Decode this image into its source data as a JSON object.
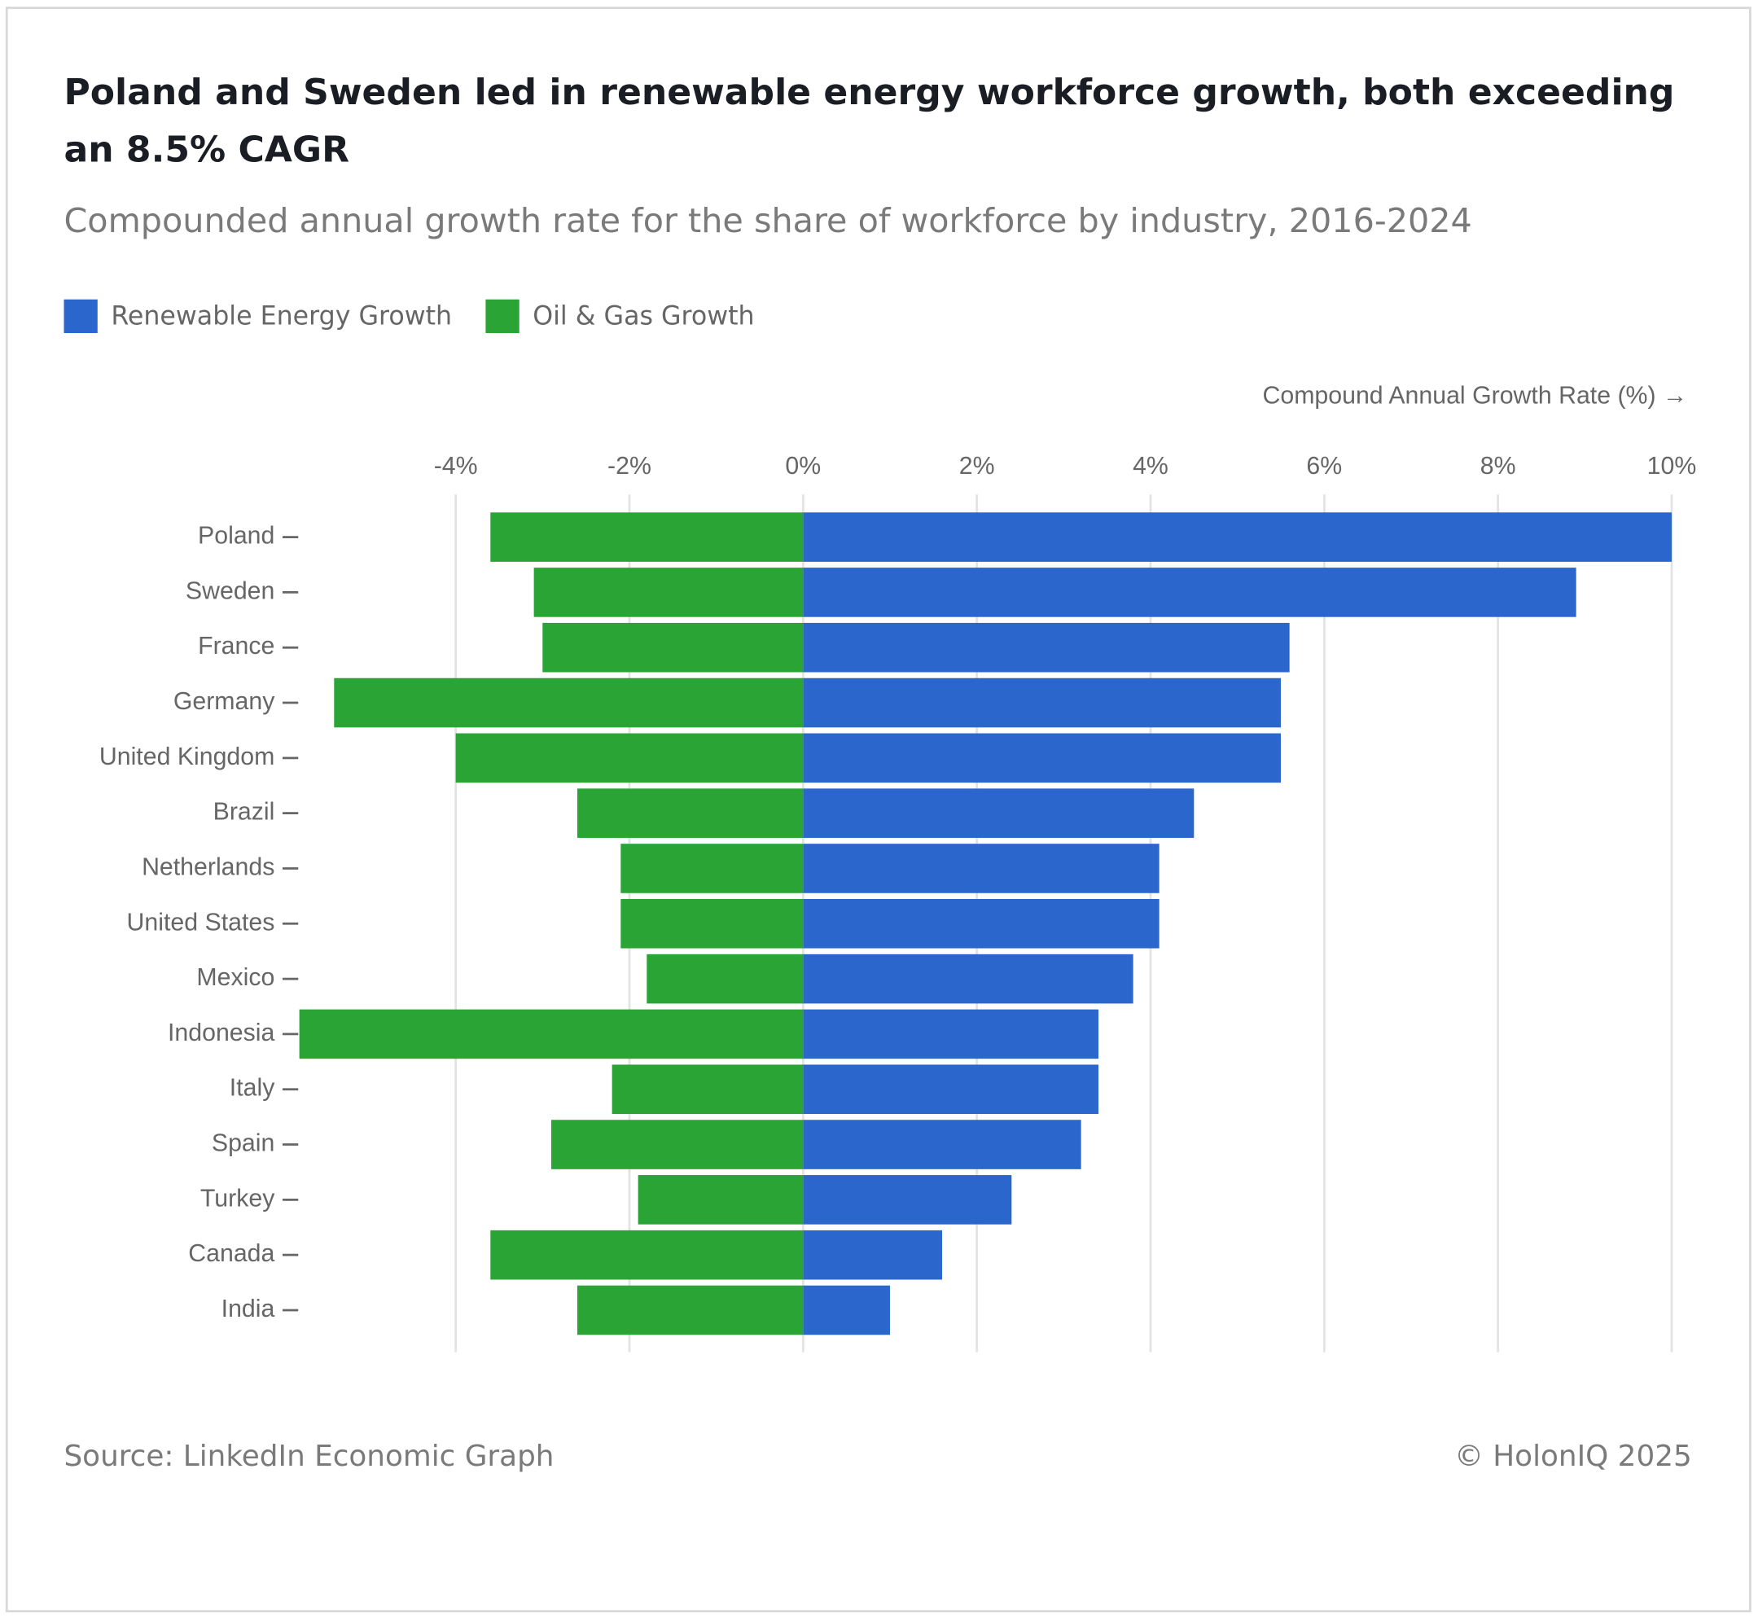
{
  "chart_data": {
    "type": "bar",
    "orientation": "horizontal",
    "title": "Poland and Sweden led in renewable energy workforce growth, both exceeding an 8.5% CAGR",
    "subtitle": "Compounded annual growth rate for the share of workforce by industry, 2016-2024",
    "x_axis_label": "Compound Annual Growth Rate (%) →",
    "source": "Source: LinkedIn Economic Graph",
    "copyright": "© HolonIQ 2025",
    "categories": [
      "Poland",
      "Sweden",
      "France",
      "Germany",
      "United Kingdom",
      "Brazil",
      "Netherlands",
      "United States",
      "Mexico",
      "Indonesia",
      "Italy",
      "Spain",
      "Turkey",
      "Canada",
      "India"
    ],
    "series": [
      {
        "name": "Renewable Energy Growth",
        "color": "#2a66cc",
        "values": [
          10.0,
          8.9,
          5.6,
          5.5,
          5.5,
          4.5,
          4.1,
          4.1,
          3.8,
          3.4,
          3.4,
          3.2,
          2.4,
          1.6,
          1.0
        ]
      },
      {
        "name": "Oil & Gas Growth",
        "color": "#2aa535",
        "values": [
          -3.6,
          -3.1,
          -3.0,
          -5.4,
          -4.0,
          -2.6,
          -2.1,
          -2.1,
          -1.8,
          -5.8,
          -2.2,
          -2.9,
          -1.9,
          -3.6,
          -2.6
        ]
      }
    ],
    "xlim": [
      -5.8,
      10
    ],
    "xticks": [
      {
        "value": -4,
        "label": "-4%"
      },
      {
        "value": -2,
        "label": "-2%"
      },
      {
        "value": 0,
        "label": "0%"
      },
      {
        "value": 2,
        "label": "2%"
      },
      {
        "value": 4,
        "label": "4%"
      },
      {
        "value": 6,
        "label": "6%"
      },
      {
        "value": 8,
        "label": "8%"
      },
      {
        "value": 10,
        "label": "10%"
      }
    ],
    "grid": true,
    "legend": "top-left"
  }
}
